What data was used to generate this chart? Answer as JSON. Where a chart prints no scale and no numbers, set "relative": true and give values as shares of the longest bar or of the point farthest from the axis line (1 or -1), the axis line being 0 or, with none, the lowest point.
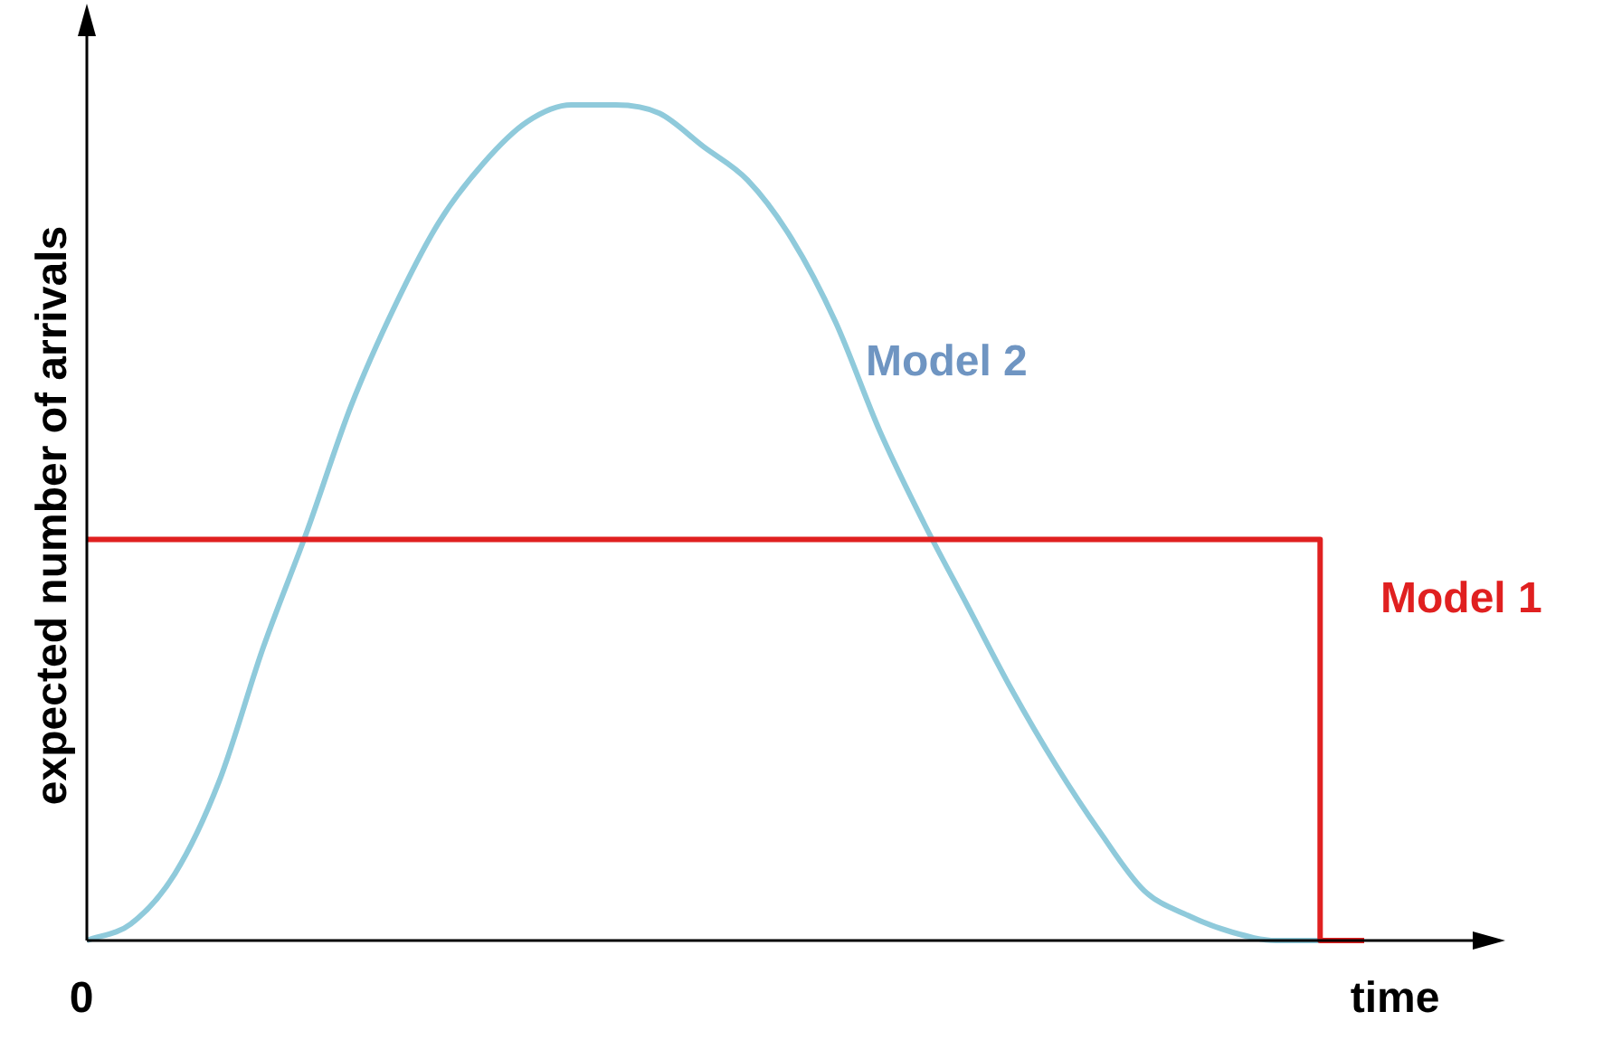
{
  "chart_data": {
    "type": "line",
    "relative": true,
    "xlabel": "time",
    "ylabel": "expected number of arrivals",
    "annotations": [
      "0"
    ],
    "legend": false,
    "marker": "none",
    "categories": [
      null,
      null,
      null,
      null,
      null,
      null,
      null,
      null,
      null,
      null,
      null,
      null,
      null,
      null,
      null,
      null,
      null,
      null,
      null,
      null,
      null,
      null,
      null,
      null,
      null,
      null,
      null,
      null,
      null,
      null
    ],
    "series": [
      {
        "name": "Model 1",
        "type": "step",
        "color": "#e02020",
        "values": [
          0.48,
          0.48,
          0.48,
          0.48,
          0.48,
          0.48,
          0.48,
          0.48,
          0.48,
          0.48,
          0.48,
          0.48,
          0.48,
          0.48,
          0.48,
          0.48,
          0.48,
          0.48,
          0.48,
          0.48,
          0.48,
          0.48,
          0.48,
          0.48,
          0.48,
          0.48,
          0.48,
          0.48,
          0.48,
          0
        ]
      },
      {
        "name": "Model 2",
        "type": "line",
        "color": "#8fcadb",
        "values": [
          0,
          0.02,
          0.08,
          0.19,
          0.35,
          0.49,
          0.64,
          0.76,
          0.86,
          0.93,
          0.98,
          1.0,
          1.0,
          0.99,
          0.95,
          0.91,
          0.84,
          0.74,
          0.61,
          0.5,
          0.4,
          0.3,
          0.21,
          0.13,
          0.06,
          0.03,
          0.01,
          0,
          0,
          0
        ]
      }
    ]
  }
}
